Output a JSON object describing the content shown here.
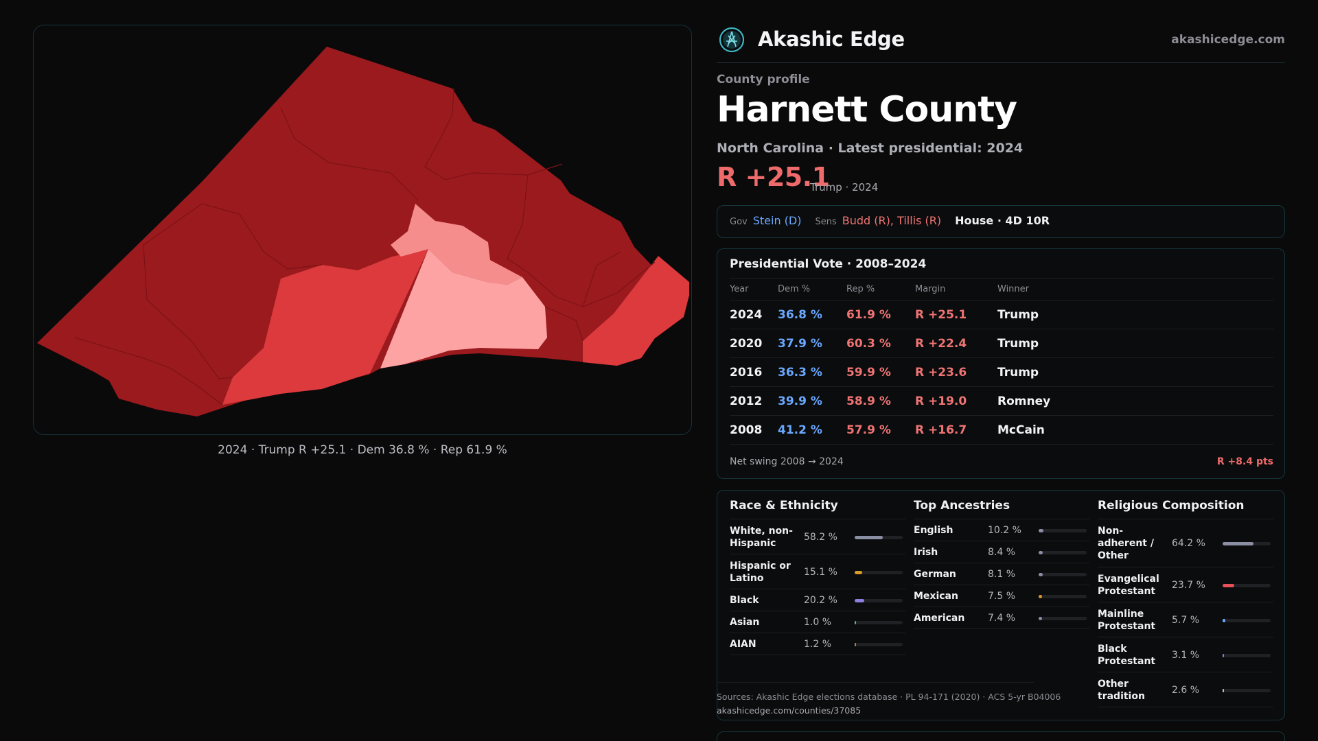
{
  "map": {
    "caption": "2024 · Trump R +25.1 · Dem 36.8 % · Rep 61.9 %",
    "colors": {
      "dark": "#9b1a1e",
      "mid": "#dc3a3c",
      "light": "#f68d8d",
      "lightest": "#fda3a3"
    }
  },
  "header": {
    "brand": "Akashic Edge",
    "site": "akashicedge.com"
  },
  "profile": {
    "eyebrow": "County profile",
    "title": "Harnett County",
    "subtitle": "North Carolina · Latest presidential: 2024",
    "margin": "R +25.1",
    "margin_note": "Trump · 2024"
  },
  "officials": {
    "gov_label": "Gov",
    "gov": "Stein (D)",
    "sens_label": "Sens",
    "sens": "Budd (R), Tillis (R)",
    "house": "House · 4D 10R"
  },
  "presidential": {
    "title": "Presidential Vote · 2008–2024",
    "headers": [
      "Year",
      "Dem %",
      "Rep %",
      "Margin",
      "Winner"
    ],
    "rows": [
      {
        "year": "2024",
        "dem": "36.8 %",
        "rep": "61.9 %",
        "margin": "R +25.1",
        "winner": "Trump"
      },
      {
        "year": "2020",
        "dem": "37.9 %",
        "rep": "60.3 %",
        "margin": "R +22.4",
        "winner": "Trump"
      },
      {
        "year": "2016",
        "dem": "36.3 %",
        "rep": "59.9 %",
        "margin": "R +23.6",
        "winner": "Trump"
      },
      {
        "year": "2012",
        "dem": "39.9 %",
        "rep": "58.9 %",
        "margin": "R +19.0",
        "winner": "Romney"
      },
      {
        "year": "2008",
        "dem": "41.2 %",
        "rep": "57.9 %",
        "margin": "R +16.7",
        "winner": "McCain"
      }
    ],
    "swing_label": "Net swing 2008 → 2024",
    "swing_value": "R +8.4 pts"
  },
  "race": {
    "title": "Race & Ethnicity",
    "items": [
      {
        "name": "White, non-Hispanic",
        "value": "58.2 %",
        "pct": 58.2,
        "color": "#8b8fa3"
      },
      {
        "name": "Hispanic or Latino",
        "value": "15.1 %",
        "pct": 15.1,
        "color": "#d89a2a"
      },
      {
        "name": "Black",
        "value": "20.2 %",
        "pct": 20.2,
        "color": "#8d7ee0"
      },
      {
        "name": "Asian",
        "value": "1.0 %",
        "pct": 1.0,
        "color": "#5fb0a8"
      },
      {
        "name": "AIAN",
        "value": "1.2 %",
        "pct": 1.2,
        "color": "#d07a4a"
      }
    ]
  },
  "ancestry": {
    "title": "Top Ancestries",
    "items": [
      {
        "name": "English",
        "value": "10.2 %",
        "pct": 10.2,
        "color": "#8b8fa3"
      },
      {
        "name": "Irish",
        "value": "8.4 %",
        "pct": 8.4,
        "color": "#8b8fa3"
      },
      {
        "name": "German",
        "value": "8.1 %",
        "pct": 8.1,
        "color": "#8b8fa3"
      },
      {
        "name": "Mexican",
        "value": "7.5 %",
        "pct": 7.5,
        "color": "#d89a2a"
      },
      {
        "name": "American",
        "value": "7.4 %",
        "pct": 7.4,
        "color": "#8b8fa3"
      }
    ]
  },
  "religion": {
    "title": "Religious Composition",
    "items": [
      {
        "name": "Non-adherent / Other",
        "value": "64.2 %",
        "pct": 64.2,
        "color": "#8b8fa3"
      },
      {
        "name": "Evangelical Protestant",
        "value": "23.7 %",
        "pct": 23.7,
        "color": "#e8505a"
      },
      {
        "name": "Mainline Protestant",
        "value": "5.7 %",
        "pct": 5.7,
        "color": "#6aa8ff"
      },
      {
        "name": "Black Protestant",
        "value": "3.1 %",
        "pct": 3.1,
        "color": "#8d7ee0"
      },
      {
        "name": "Other tradition",
        "value": "2.6 %",
        "pct": 2.6,
        "color": "#c4c4cc"
      }
    ]
  },
  "sources": {
    "text": "Sources: Akashic Edge elections database · PL 94-171 (2020) · ACS 5-yr B04006",
    "url": "akashicedge.com/counties/37085"
  }
}
